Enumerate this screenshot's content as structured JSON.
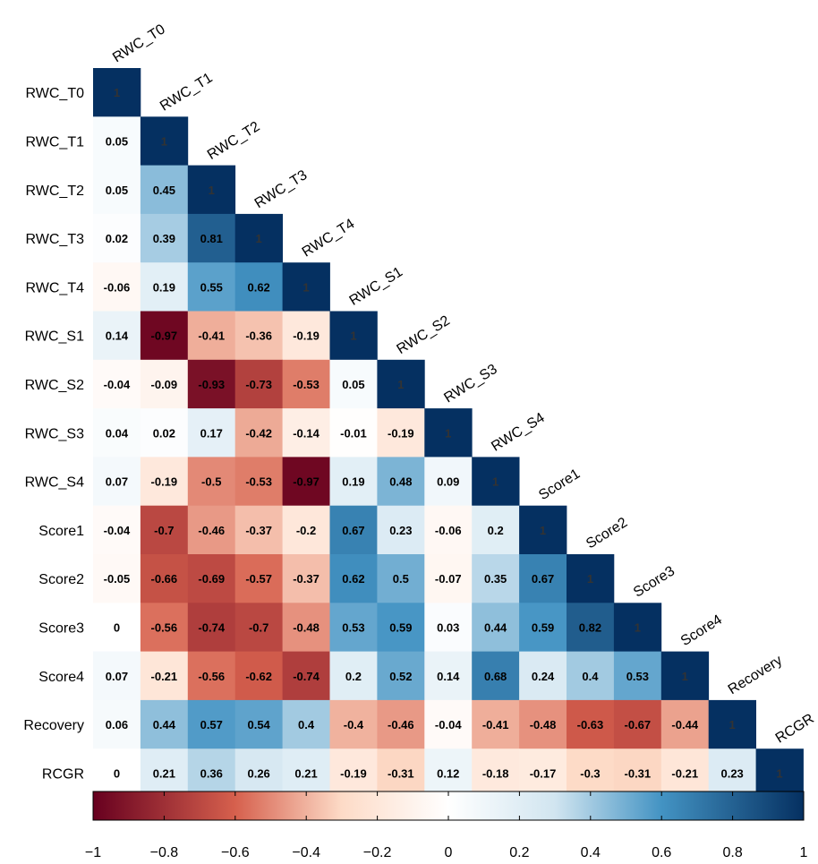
{
  "chart_data": {
    "type": "heatmap",
    "title": "",
    "variables": [
      "RWC_T0",
      "RWC_T1",
      "RWC_T2",
      "RWC_T3",
      "RWC_T4",
      "RWC_S1",
      "RWC_S2",
      "RWC_S3",
      "RWC_S4",
      "Score1",
      "Score2",
      "Score3",
      "Score4",
      "Recovery",
      "RCGR"
    ],
    "matrix": [
      [
        "1"
      ],
      [
        "0.05",
        "1"
      ],
      [
        "0.05",
        "0.45",
        "1"
      ],
      [
        "0.02",
        "0.39",
        "0.81",
        "1"
      ],
      [
        "-0.06",
        "0.19",
        "0.55",
        "0.62",
        "1"
      ],
      [
        "0.14",
        "-0.97",
        "-0.41",
        "-0.36",
        "-0.19",
        "1"
      ],
      [
        "-0.04",
        "-0.09",
        "-0.93",
        "-0.73",
        "-0.53",
        "0.05",
        "1"
      ],
      [
        "0.04",
        "0.02",
        "0.17",
        "-0.42",
        "-0.14",
        "-0.01",
        "-0.19",
        "1"
      ],
      [
        "0.07",
        "-0.19",
        "-0.5",
        "-0.53",
        "-0.97",
        "0.19",
        "0.48",
        "0.09",
        "1"
      ],
      [
        "-0.04",
        "-0.7",
        "-0.46",
        "-0.37",
        "-0.2",
        "0.67",
        "0.23",
        "-0.06",
        "0.2",
        "1"
      ],
      [
        "-0.05",
        "-0.66",
        "-0.69",
        "-0.57",
        "-0.37",
        "0.62",
        "0.5",
        "-0.07",
        "0.35",
        "0.67",
        "1"
      ],
      [
        "0",
        "-0.56",
        "-0.74",
        "-0.7",
        "-0.48",
        "0.53",
        "0.59",
        "0.03",
        "0.44",
        "0.59",
        "0.82",
        "1"
      ],
      [
        "0.07",
        "-0.21",
        "-0.56",
        "-0.62",
        "-0.74",
        "0.2",
        "0.52",
        "0.14",
        "0.68",
        "0.24",
        "0.4",
        "0.53",
        "1"
      ],
      [
        "0.06",
        "0.44",
        "0.57",
        "0.54",
        "0.4",
        "-0.4",
        "-0.46",
        "-0.04",
        "-0.41",
        "-0.48",
        "-0.63",
        "-0.67",
        "-0.44",
        "1"
      ],
      [
        "0",
        "0.21",
        "0.36",
        "0.26",
        "0.21",
        "-0.19",
        "-0.31",
        "0.12",
        "-0.18",
        "-0.17",
        "-0.3",
        "-0.31",
        "-0.21",
        "0.23",
        "1"
      ]
    ],
    "colorbar": {
      "range": [
        -1,
        1
      ],
      "ticks": [
        "−1",
        "−0.8",
        "−0.6",
        "−0.4",
        "−0.2",
        "0",
        "0.2",
        "0.4",
        "0.6",
        "0.8",
        "1"
      ],
      "colors": {
        "neg_strong": "#67001F",
        "neg_mid": "#D6604D",
        "neg_light": "#FDDBC7",
        "zero": "#FFFFFF",
        "pos_light": "#D1E5F0",
        "pos_mid": "#4393C3",
        "pos_strong": "#053061"
      }
    }
  }
}
